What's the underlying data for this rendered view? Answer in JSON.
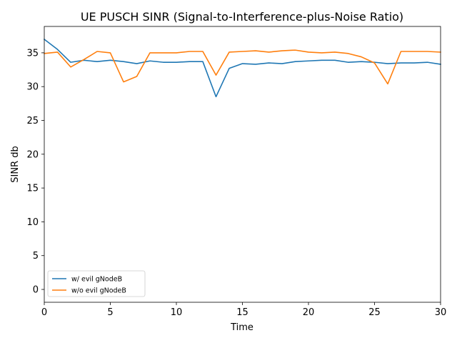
{
  "chart_data": {
    "type": "line",
    "title": "UE PUSCH SINR (Signal-to-Interference-plus-Noise Ratio)",
    "xlabel": "Time",
    "ylabel": "SINR db",
    "xlim": [
      0,
      30
    ],
    "ylim": [
      -1.9,
      38.9
    ],
    "xticks": [
      0,
      5,
      10,
      15,
      20,
      25,
      30
    ],
    "yticks": [
      0,
      5,
      10,
      15,
      20,
      25,
      30,
      35
    ],
    "grid": false,
    "legend_position": "lower-left",
    "x": [
      0,
      1,
      2,
      3,
      4,
      5,
      6,
      7,
      8,
      9,
      10,
      11,
      12,
      13,
      14,
      15,
      16,
      17,
      18,
      19,
      20,
      21,
      22,
      23,
      24,
      25,
      26,
      27,
      28,
      29,
      30
    ],
    "series": [
      {
        "name": "w/ evil gNodeB",
        "color": "#1f77b4",
        "values": [
          37.0,
          35.5,
          33.6,
          33.9,
          33.7,
          33.9,
          33.7,
          33.4,
          33.8,
          33.6,
          33.6,
          33.7,
          33.7,
          28.5,
          32.7,
          33.4,
          33.3,
          33.5,
          33.4,
          33.7,
          33.8,
          33.9,
          33.9,
          33.6,
          33.7,
          33.6,
          33.4,
          33.5,
          33.5,
          33.6,
          33.3
        ]
      },
      {
        "name": "w/o evil gNodeB",
        "color": "#ff7f0e",
        "values": [
          34.9,
          35.1,
          32.9,
          34.0,
          35.2,
          35.0,
          30.7,
          31.5,
          35.0,
          35.0,
          35.0,
          35.2,
          35.2,
          31.7,
          35.1,
          35.2,
          35.3,
          35.1,
          35.3,
          35.4,
          35.1,
          35.0,
          35.1,
          34.9,
          34.4,
          33.5,
          30.4,
          35.2,
          35.2,
          35.2,
          35.1
        ]
      }
    ]
  }
}
